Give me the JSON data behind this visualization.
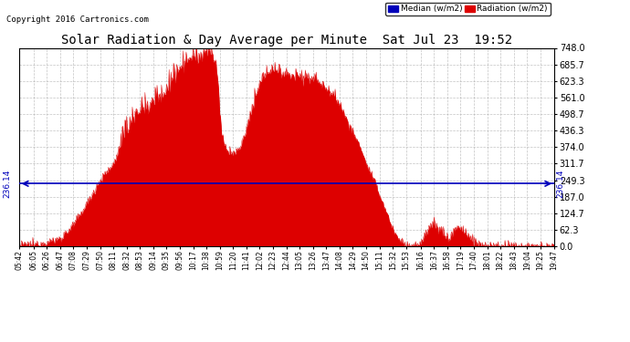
{
  "title": "Solar Radiation & Day Average per Minute  Sat Jul 23  19:52",
  "copyright": "Copyright 2016 Cartronics.com",
  "legend_median": "Median (w/m2)",
  "legend_radiation": "Radiation (w/m2)",
  "median_value": 236.14,
  "y_tick_labels": [
    "0.0",
    "62.3",
    "124.7",
    "187.0",
    "249.3",
    "311.7",
    "374.0",
    "436.3",
    "498.7",
    "561.0",
    "623.3",
    "685.7",
    "748.0"
  ],
  "y_tick_values": [
    0.0,
    62.3,
    124.7,
    187.0,
    249.3,
    311.7,
    374.0,
    436.3,
    498.7,
    561.0,
    623.3,
    685.7,
    748.0
  ],
  "ylim": [
    0,
    748.0
  ],
  "x_tick_labels": [
    "05:42",
    "06:05",
    "06:26",
    "06:47",
    "07:08",
    "07:29",
    "07:50",
    "08:11",
    "08:32",
    "08:53",
    "09:14",
    "09:35",
    "09:56",
    "10:17",
    "10:38",
    "10:59",
    "11:20",
    "11:41",
    "12:02",
    "12:23",
    "12:44",
    "13:05",
    "13:26",
    "13:47",
    "14:08",
    "14:29",
    "14:50",
    "15:11",
    "15:32",
    "15:53",
    "16:16",
    "16:37",
    "16:58",
    "17:19",
    "17:40",
    "18:01",
    "18:22",
    "18:43",
    "19:04",
    "19:25",
    "19:47"
  ],
  "background_color": "#ffffff",
  "plot_bg_color": "#ffffff",
  "grid_color": "#aaaaaa",
  "area_color": "#dd0000",
  "median_line_color": "#0000bb",
  "title_color": "#000000",
  "copyright_color": "#000000"
}
